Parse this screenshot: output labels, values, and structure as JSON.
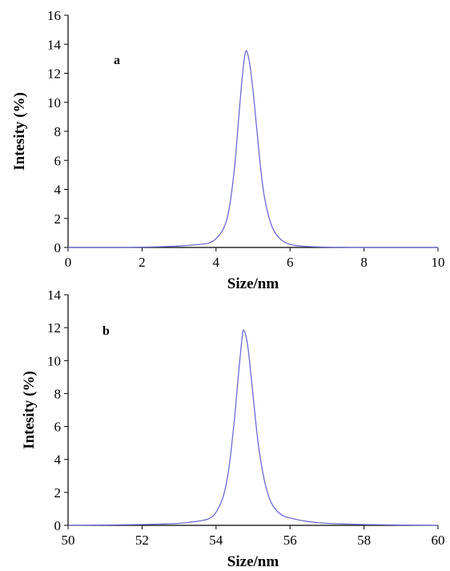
{
  "chart_data": [
    {
      "type": "line",
      "panel_label": "a",
      "xlabel": "Size/nm",
      "ylabel": "Intesity (%)",
      "xlim": [
        0,
        10
      ],
      "ylim": [
        0,
        16
      ],
      "x_ticks": [
        "0",
        "2",
        "4",
        "6",
        "8",
        "10"
      ],
      "y_ticks": [
        "0",
        "2",
        "4",
        "6",
        "8",
        "10",
        "12",
        "14",
        "16"
      ],
      "grid": false,
      "line_color": "#6b6bd6",
      "series": [
        {
          "x": [
            0,
            1,
            1.5,
            2,
            2.5,
            3,
            3.5,
            3.8,
            4,
            4.2,
            4.35,
            4.5,
            4.6,
            4.7,
            4.8,
            4.9,
            5.0,
            5.1,
            5.2,
            5.3,
            5.45,
            5.6,
            5.8,
            6,
            6.2,
            6.5,
            7,
            7.5,
            8,
            9,
            10
          ],
          "y": [
            0,
            0,
            0,
            0.02,
            0.05,
            0.1,
            0.2,
            0.3,
            0.6,
            1.3,
            2.6,
            5.5,
            8.5,
            11.5,
            13.5,
            12.8,
            10.8,
            8.2,
            5.6,
            3.6,
            1.9,
            1.0,
            0.45,
            0.22,
            0.12,
            0.06,
            0.02,
            0.01,
            0,
            0,
            0
          ]
        }
      ]
    },
    {
      "type": "line",
      "panel_label": "b",
      "xlabel": "Size/nm",
      "ylabel": "Intesity (%)",
      "xlim": [
        50,
        60
      ],
      "ylim": [
        0,
        14
      ],
      "x_ticks": [
        "50",
        "52",
        "54",
        "56",
        "58",
        "60"
      ],
      "y_ticks": [
        "0",
        "2",
        "4",
        "6",
        "8",
        "10",
        "12",
        "14"
      ],
      "grid": false,
      "line_color": "#6b6bd6",
      "series": [
        {
          "x": [
            50,
            51,
            52,
            52.5,
            53,
            53.5,
            53.8,
            54,
            54.2,
            54.35,
            54.5,
            54.6,
            54.7,
            54.75,
            54.85,
            54.95,
            55.05,
            55.15,
            55.3,
            55.45,
            55.6,
            55.8,
            56,
            56.3,
            56.6,
            57,
            57.5,
            58,
            59,
            60
          ],
          "y": [
            0,
            0.02,
            0.05,
            0.08,
            0.12,
            0.25,
            0.4,
            0.8,
            1.8,
            3.5,
            6.5,
            9.0,
            11.3,
            11.85,
            11.0,
            9.0,
            6.8,
            4.8,
            2.8,
            1.6,
            1.0,
            0.6,
            0.45,
            0.3,
            0.2,
            0.12,
            0.08,
            0.05,
            0.02,
            0
          ]
        }
      ]
    }
  ]
}
